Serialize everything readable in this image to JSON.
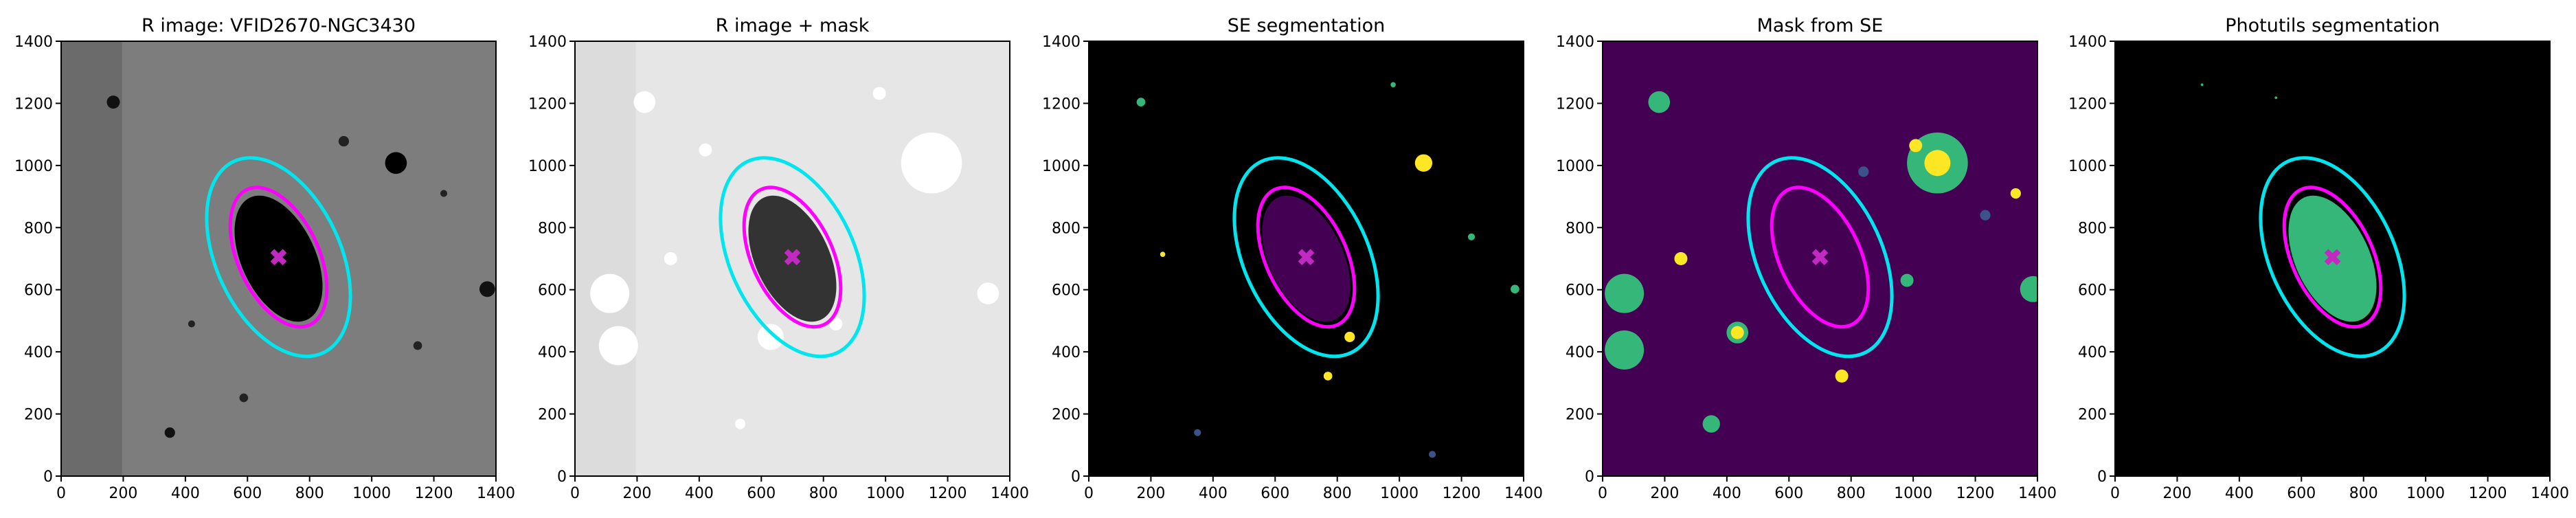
{
  "chart_data": [
    {
      "type": "image",
      "title": "R image: VFID2670-NGC3430",
      "xlim": [
        0,
        1400
      ],
      "ylim": [
        0,
        1400
      ],
      "xticks": [
        0,
        200,
        400,
        600,
        800,
        1000,
        1200,
        1400
      ],
      "yticks": [
        0,
        200,
        400,
        600,
        800,
        1000,
        1200,
        1400
      ],
      "ellipses": [
        {
          "x": 700,
          "y": 705,
          "a": 340,
          "b": 200,
          "angle": -65,
          "color": "#00e5ee"
        },
        {
          "x": 700,
          "y": 705,
          "a": 240,
          "b": 130,
          "angle": -65,
          "color": "#ff00ff"
        }
      ],
      "marker": {
        "x": 700,
        "y": 705,
        "color": "#c02ac0"
      }
    },
    {
      "type": "image",
      "title": "R image + mask",
      "xlim": [
        0,
        1400
      ],
      "ylim": [
        0,
        1400
      ],
      "xticks": [
        0,
        200,
        400,
        600,
        800,
        1000,
        1200,
        1400
      ],
      "yticks": [
        0,
        200,
        400,
        600,
        800,
        1000,
        1200,
        1400
      ],
      "ellipses": [
        {
          "x": 700,
          "y": 705,
          "a": 340,
          "b": 200,
          "angle": -65,
          "color": "#00e5ee"
        },
        {
          "x": 700,
          "y": 705,
          "a": 240,
          "b": 130,
          "angle": -65,
          "color": "#ff00ff"
        }
      ],
      "marker": {
        "x": 700,
        "y": 705,
        "color": "#c02ac0"
      }
    },
    {
      "type": "image",
      "title": "SE segmentation",
      "xlim": [
        0,
        1400
      ],
      "ylim": [
        0,
        1400
      ],
      "xticks": [
        0,
        200,
        400,
        600,
        800,
        1000,
        1200,
        1400
      ],
      "yticks": [
        0,
        200,
        400,
        600,
        800,
        1000,
        1200,
        1400
      ],
      "ellipses": [
        {
          "x": 700,
          "y": 705,
          "a": 340,
          "b": 200,
          "angle": -65,
          "color": "#00e5ee"
        },
        {
          "x": 700,
          "y": 705,
          "a": 240,
          "b": 130,
          "angle": -65,
          "color": "#ff00ff"
        }
      ],
      "marker": {
        "x": 700,
        "y": 705,
        "color": "#c02ac0"
      }
    },
    {
      "type": "image",
      "title": "Mask from SE",
      "xlim": [
        0,
        1400
      ],
      "ylim": [
        0,
        1400
      ],
      "xticks": [
        0,
        200,
        400,
        600,
        800,
        1000,
        1200,
        1400
      ],
      "yticks": [
        0,
        200,
        400,
        600,
        800,
        1000,
        1200,
        1400
      ],
      "ellipses": [
        {
          "x": 700,
          "y": 705,
          "a": 340,
          "b": 200,
          "angle": -65,
          "color": "#00e5ee"
        },
        {
          "x": 700,
          "y": 705,
          "a": 240,
          "b": 130,
          "angle": -65,
          "color": "#ff00ff"
        }
      ],
      "marker": {
        "x": 700,
        "y": 705,
        "color": "#c02ac0"
      }
    },
    {
      "type": "image",
      "title": "Photutils segmentation",
      "xlim": [
        0,
        1400
      ],
      "ylim": [
        0,
        1400
      ],
      "xticks": [
        0,
        200,
        400,
        600,
        800,
        1000,
        1200,
        1400
      ],
      "yticks": [
        0,
        200,
        400,
        600,
        800,
        1000,
        1200,
        1400
      ],
      "ellipses": [
        {
          "x": 700,
          "y": 705,
          "a": 340,
          "b": 200,
          "angle": -65,
          "color": "#00e5ee"
        },
        {
          "x": 700,
          "y": 705,
          "a": 240,
          "b": 130,
          "angle": -65,
          "color": "#ff00ff"
        }
      ],
      "marker": {
        "x": 700,
        "y": 705,
        "color": "#c02ac0"
      }
    }
  ]
}
